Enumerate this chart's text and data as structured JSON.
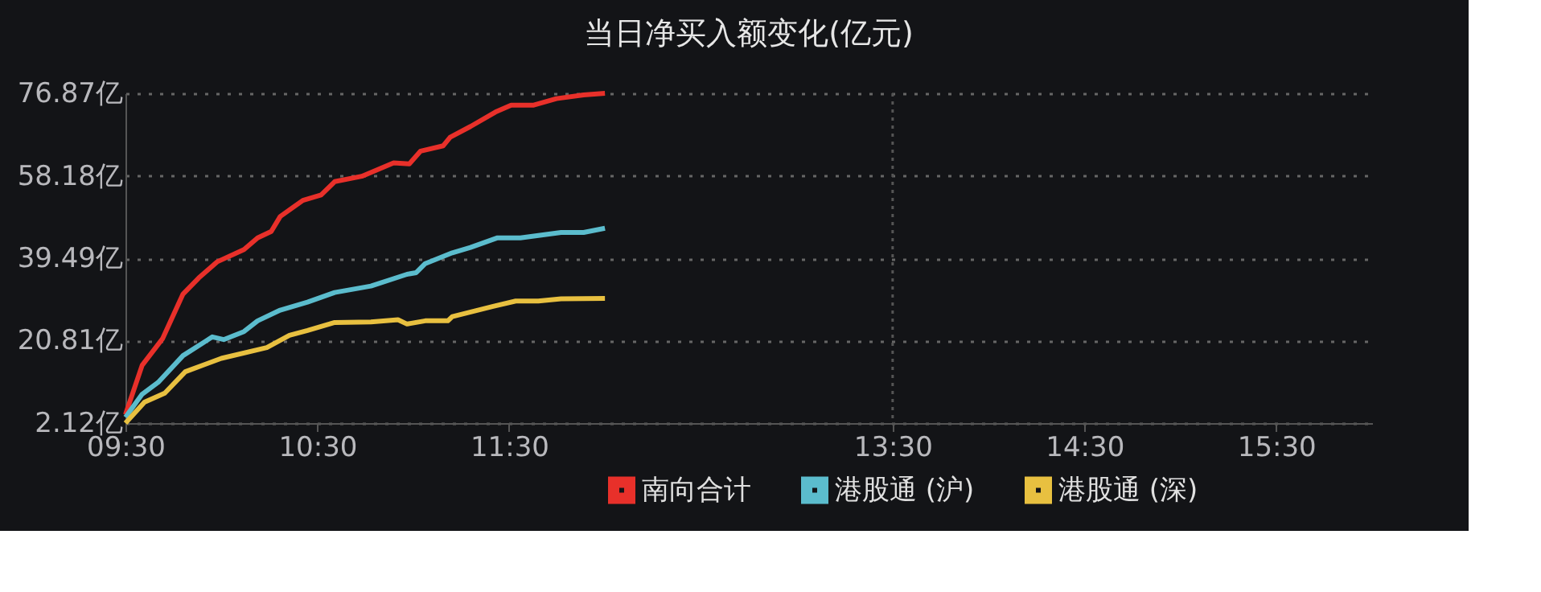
{
  "chart_data": {
    "type": "line",
    "title": "当日净买入额变化(亿元)",
    "xlim": [
      9.5,
      16.0
    ],
    "xticks": [
      {
        "value": 9.5,
        "label": "09:30"
      },
      {
        "value": 10.5,
        "label": "10:30"
      },
      {
        "value": 11.5,
        "label": "11:30"
      },
      {
        "value": 13.5,
        "label": "13:30"
      },
      {
        "value": 14.5,
        "label": "14:30"
      },
      {
        "value": 15.5,
        "label": "15:30"
      }
    ],
    "ylim": [
      2.12,
      76.87
    ],
    "yticks": [
      {
        "value": 2.12,
        "label": "2.12亿"
      },
      {
        "value": 20.81,
        "label": "20.81亿"
      },
      {
        "value": 39.49,
        "label": "39.49亿"
      },
      {
        "value": 58.18,
        "label": "58.18亿"
      },
      {
        "value": 76.87,
        "label": "76.87亿"
      }
    ],
    "grid": "y",
    "legend": "bottom",
    "marker": "none",
    "line_style": "solid",
    "ref_lines": [
      {
        "axis": "x",
        "value": 13.5,
        "line_style": "dotted",
        "color": "#555555"
      }
    ],
    "series": [
      {
        "name": "南向合计",
        "color": "#e8302a",
        "x": [
          9.5,
          9.587,
          9.694,
          9.8,
          9.882,
          9.977,
          10.118,
          10.189,
          10.26,
          10.307,
          10.425,
          10.52,
          10.591,
          10.732,
          10.898,
          10.98,
          11.039,
          11.157,
          11.193,
          11.299,
          11.429,
          11.511,
          11.629,
          11.747,
          11.889,
          12.0
        ],
        "values": [
          4.06,
          15.23,
          21.29,
          31.37,
          35.01,
          38.65,
          41.44,
          44.11,
          45.56,
          48.96,
          52.6,
          53.81,
          56.85,
          58.06,
          61.09,
          60.85,
          63.77,
          64.98,
          66.92,
          69.35,
          72.62,
          74.2,
          74.2,
          75.66,
          76.51,
          76.87
        ]
      },
      {
        "name": "港股通 (沪)",
        "color": "#5bbccd",
        "x": [
          9.5,
          9.587,
          9.67,
          9.8,
          9.953,
          10.012,
          10.118,
          10.189,
          10.307,
          10.449,
          10.591,
          10.78,
          10.968,
          11.016,
          11.063,
          11.204,
          11.299,
          11.44,
          11.559,
          11.771,
          11.889,
          12.0
        ],
        "values": [
          3.45,
          8.67,
          11.34,
          17.41,
          21.66,
          21.05,
          22.87,
          25.3,
          27.72,
          29.54,
          31.73,
          33.18,
          35.85,
          36.22,
          38.28,
          40.71,
          41.92,
          44.11,
          44.11,
          45.32,
          45.32,
          46.29
        ]
      },
      {
        "name": "港股通 (深)",
        "color": "#e8c040",
        "x": [
          9.5,
          9.599,
          9.705,
          9.812,
          10.0,
          10.237,
          10.355,
          10.449,
          10.591,
          10.78,
          10.921,
          10.968,
          11.063,
          11.181,
          11.204,
          11.417,
          11.535,
          11.653,
          11.771,
          12.0
        ],
        "values": [
          2.12,
          6.85,
          8.92,
          13.77,
          16.8,
          19.23,
          22.02,
          23.11,
          24.93,
          25.05,
          25.54,
          24.57,
          25.3,
          25.3,
          26.27,
          28.57,
          29.79,
          29.79,
          30.27,
          30.39
        ]
      }
    ]
  }
}
